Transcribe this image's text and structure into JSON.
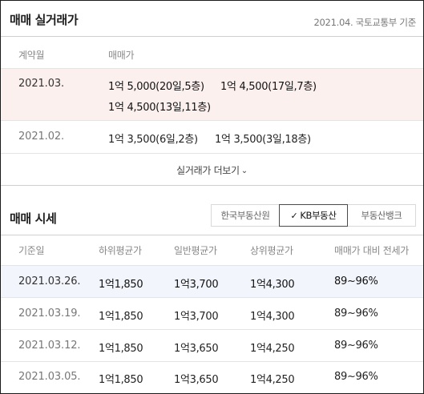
{
  "transactions": {
    "title": "매매 실거래가",
    "source_note": "2021.04. 국토교통부 기준",
    "columns": [
      "계약월",
      "매매가"
    ],
    "rows": [
      {
        "month": "2021.03.",
        "deals": [
          "1억 5,000(20일,5층)",
          "1억 4,500(17일,7층)",
          "1억 4,500(13일,11층)"
        ]
      },
      {
        "month": "2021.02.",
        "deals": [
          "1억 3,500(6일,2층)",
          "1억 3,500(3일,18층)"
        ]
      }
    ],
    "more_label": "실거래가 더보기",
    "more_icon": "chevron-down-icon"
  },
  "market": {
    "title": "매매 시세",
    "tabs": [
      {
        "label": "한국부동산원",
        "active": false
      },
      {
        "label": "KB부동산",
        "active": true,
        "icon": "check-icon"
      },
      {
        "label": "부동산뱅크",
        "active": false
      }
    ],
    "columns": [
      "기준일",
      "하위평균가",
      "일반평균가",
      "상위평균가",
      "매매가 대비 전세가"
    ],
    "rows": [
      {
        "date": "2021.03.26.",
        "low": "1억1,850",
        "mid": "1억3,700",
        "high": "1억4,300",
        "ratio": "89~96%"
      },
      {
        "date": "2021.03.19.",
        "low": "1억1,850",
        "mid": "1억3,700",
        "high": "1억4,300",
        "ratio": "89~96%"
      },
      {
        "date": "2021.03.12.",
        "low": "1억1,850",
        "mid": "1억3,650",
        "high": "1억4,250",
        "ratio": "89~96%"
      },
      {
        "date": "2021.03.05.",
        "low": "1억1,850",
        "mid": "1억3,650",
        "high": "1억4,250",
        "ratio": "89~96%"
      }
    ]
  },
  "colors": {
    "highlight_row_transactions": "#fcf0ef",
    "highlight_row_market": "#f2f5fb",
    "border": "#1a1a1a",
    "muted_text": "#888888"
  }
}
